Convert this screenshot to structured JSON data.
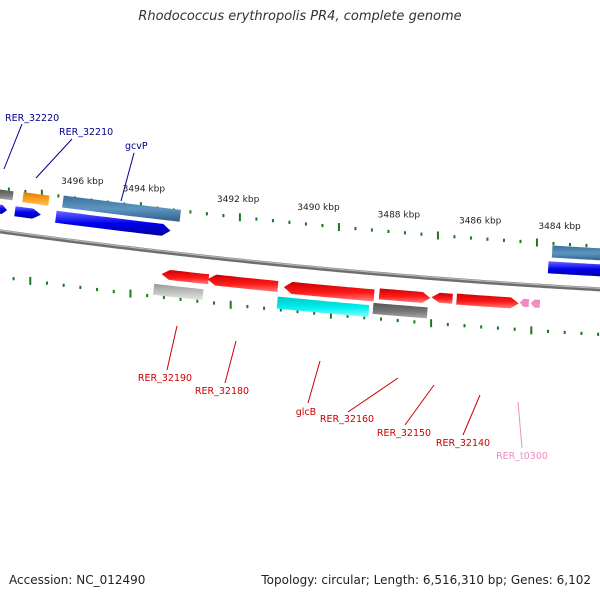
{
  "title": "Rhodococcus erythropolis PR4, complete genome",
  "accession": "Accession: NC_012490",
  "topology": "Topology: circular; Length: 6,516,310 bp; Genes: 6,102",
  "kbp_labels": [
    "3496 kbp",
    "3494 kbp",
    "3492 kbp",
    "3490 kbp",
    "3488 kbp",
    "3486 kbp",
    "3484 kbp"
  ],
  "genes_top": [
    {
      "name": "RER_32220",
      "color": "#00008b"
    },
    {
      "name": "RER_32210",
      "color": "#00008b"
    },
    {
      "name": "gcvP",
      "color": "#00008b"
    }
  ],
  "genes_bottom": [
    {
      "name": "RER_32190",
      "color": "#cc0000"
    },
    {
      "name": "RER_32180",
      "color": "#cc0000"
    },
    {
      "name": "glcB",
      "color": "#cc0000"
    },
    {
      "name": "RER_32160",
      "color": "#cc0000"
    },
    {
      "name": "RER_32150",
      "color": "#cc0000"
    },
    {
      "name": "RER_32140",
      "color": "#cc0000"
    },
    {
      "name": "RER_t0300",
      "color": "#f08cc0"
    }
  ],
  "colors": {
    "backbone": "#8c8c8c",
    "tick": "#1a7a1a",
    "forward_cds": "#0000ee",
    "reverse_cds": "#ee0000",
    "steelblue": "#4a7fa8",
    "orange": "#ff9900",
    "cyan": "#00e5e5",
    "gray": "#666666",
    "lightgray": "#bbbbbb",
    "pink": "#f08cc0"
  }
}
